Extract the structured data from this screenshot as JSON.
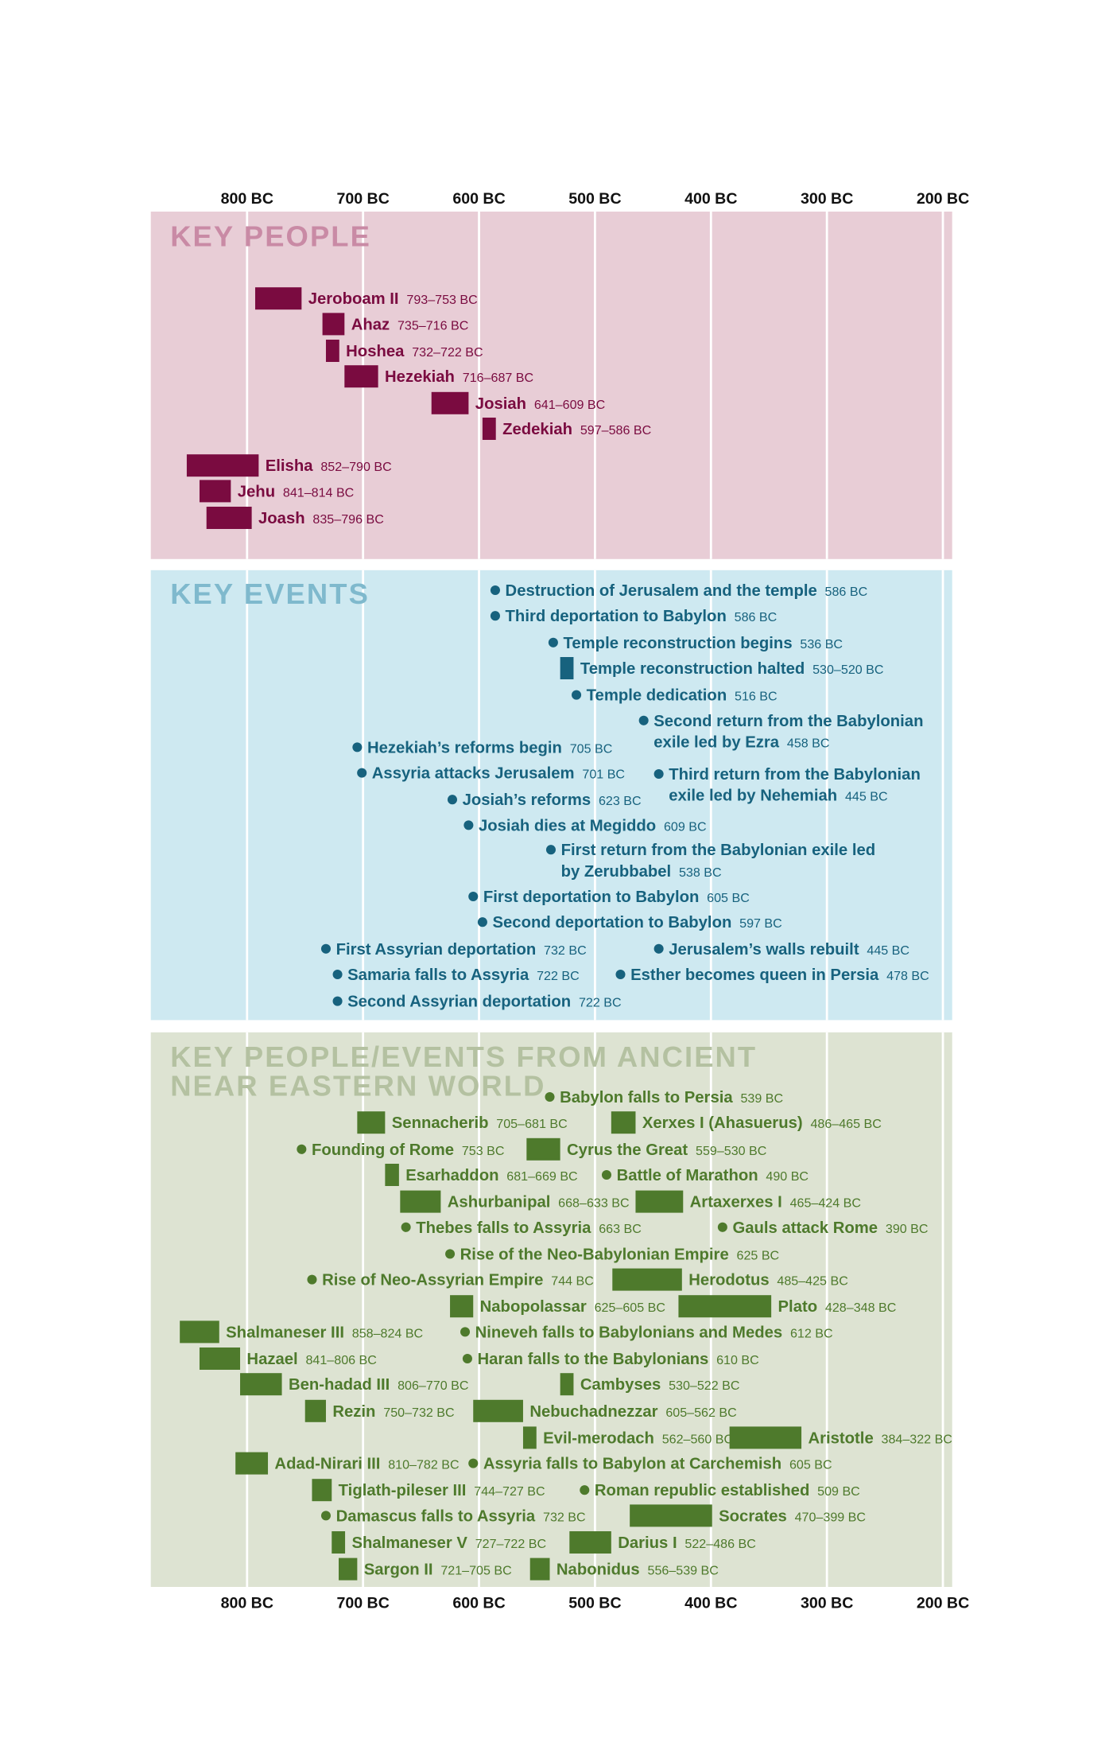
{
  "chart_data": {
    "type": "timeline",
    "xlim": [
      883,
      192
    ],
    "xticks": [
      {
        "value": 800,
        "label": "800 BC"
      },
      {
        "value": 700,
        "label": "700 BC"
      },
      {
        "value": 600,
        "label": "600 BC"
      },
      {
        "value": 500,
        "label": "500 BC"
      },
      {
        "value": 400,
        "label": "400 BC"
      },
      {
        "value": 300,
        "label": "300 BC"
      },
      {
        "value": 200,
        "label": "200 BC"
      }
    ],
    "grid": true,
    "sections": [
      {
        "title": [
          "KEY PEOPLE"
        ],
        "color": "#7a0b40",
        "title_color": "#c98aa5",
        "background": "#e8cdd6",
        "items": [
          {
            "name": "Jeroboam II",
            "values": [
              793,
              753
            ],
            "value_label": "793–753 BC"
          },
          {
            "name": "Ahaz",
            "values": [
              735,
              716
            ],
            "value_label": "735–716 BC"
          },
          {
            "name": "Hoshea",
            "values": [
              732,
              722
            ],
            "value_label": "732–722 BC"
          },
          {
            "name": "Hezekiah",
            "values": [
              716,
              687
            ],
            "value_label": "716–687 BC"
          },
          {
            "name": "Josiah",
            "values": [
              641,
              609
            ],
            "value_label": "641–609 BC"
          },
          {
            "name": "Zedekiah",
            "values": [
              597,
              586
            ],
            "value_label": "597–586 BC"
          },
          {
            "name": "Elisha",
            "values": [
              852,
              790
            ],
            "value_label": "852–790 BC"
          },
          {
            "name": "Jehu",
            "values": [
              841,
              814
            ],
            "value_label": "841–814 BC"
          },
          {
            "name": "Joash",
            "values": [
              835,
              796
            ],
            "value_label": "835–796 BC"
          }
        ]
      },
      {
        "title": [
          "KEY EVENTS"
        ],
        "color": "#17627e",
        "title_color": "#7fb9cd",
        "background": "#cee9f1",
        "items": [
          {
            "name": "Destruction of Jerusalem and the temple",
            "value": 586,
            "value_label": "586 BC"
          },
          {
            "name": "Third deportation to Babylon",
            "value": 586,
            "value_label": "586 BC"
          },
          {
            "name": "Temple reconstruction begins",
            "value": 536,
            "value_label": "536 BC"
          },
          {
            "name": "Temple reconstruction halted",
            "values": [
              530,
              520
            ],
            "value_label": "530–520 BC"
          },
          {
            "name": "Temple dedication",
            "value": 516,
            "value_label": "516 BC"
          },
          {
            "name": [
              "Second return from the Babylonian",
              "exile led by Ezra"
            ],
            "value": 458,
            "value_label": "458 BC"
          },
          {
            "name": "Hezekiah’s reforms begin",
            "value": 705,
            "value_label": "705 BC"
          },
          {
            "name": "Assyria attacks Jerusalem",
            "value": 701,
            "value_label": "701 BC"
          },
          {
            "name": [
              "Third return from the Babylonian",
              "exile led by Nehemiah"
            ],
            "value": 445,
            "value_label": "445 BC"
          },
          {
            "name": "Josiah’s reforms",
            "value": 623,
            "value_label": "623 BC"
          },
          {
            "name": "Josiah dies at Megiddo",
            "value": 609,
            "value_label": "609 BC"
          },
          {
            "name": [
              "First return from the Babylonian exile led",
              "by Zerubbabel"
            ],
            "value": 538,
            "value_label": "538 BC"
          },
          {
            "name": "First deportation to Babylon",
            "value": 605,
            "value_label": "605 BC"
          },
          {
            "name": "Second deportation to Babylon",
            "value": 597,
            "value_label": "597 BC"
          },
          {
            "name": "First Assyrian deportation",
            "value": 732,
            "value_label": "732 BC"
          },
          {
            "name": "Jerusalem’s walls rebuilt",
            "value": 445,
            "value_label": "445 BC"
          },
          {
            "name": "Samaria falls to Assyria",
            "value": 722,
            "value_label": "722 BC"
          },
          {
            "name": "Esther becomes queen in Persia",
            "value": 478,
            "value_label": "478 BC"
          },
          {
            "name": "Second Assyrian deportation",
            "value": 722,
            "value_label": "722 BC"
          }
        ]
      },
      {
        "title": [
          "KEY PEOPLE/EVENTS FROM ANCIENT",
          "NEAR EASTERN WORLD"
        ],
        "color": "#4e7a2c",
        "title_color": "#b4c1a1",
        "background": "#dde3d2",
        "items": [
          {
            "name": "Babylon falls to Persia",
            "value": 539,
            "value_label": "539 BC"
          },
          {
            "name": "Sennacherib",
            "values": [
              705,
              681
            ],
            "value_label": "705–681 BC"
          },
          {
            "name": "Xerxes I (Ahasuerus)",
            "values": [
              486,
              465
            ],
            "value_label": "486–465 BC"
          },
          {
            "name": "Founding of Rome",
            "value": 753,
            "value_label": "753 BC"
          },
          {
            "name": "Cyrus the Great",
            "values": [
              559,
              530
            ],
            "value_label": "559–530 BC"
          },
          {
            "name": "Esarhaddon",
            "values": [
              681,
              669
            ],
            "value_label": "681–669 BC"
          },
          {
            "name": "Battle of Marathon",
            "value": 490,
            "value_label": "490 BC"
          },
          {
            "name": "Ashurbanipal",
            "values": [
              668,
              633
            ],
            "value_label": "668–633 BC"
          },
          {
            "name": "Artaxerxes I",
            "values": [
              465,
              424
            ],
            "value_label": "465–424 BC"
          },
          {
            "name": "Thebes falls to Assyria",
            "value": 663,
            "value_label": "663 BC"
          },
          {
            "name": "Gauls attack Rome",
            "value": 390,
            "value_label": "390 BC"
          },
          {
            "name": "Rise of the Neo-Babylonian Empire",
            "value": 625,
            "value_label": "625 BC"
          },
          {
            "name": "Rise of Neo-Assyrian Empire",
            "value": 744,
            "value_label": "744 BC"
          },
          {
            "name": "Herodotus",
            "values": [
              485,
              425
            ],
            "value_label": "485–425 BC"
          },
          {
            "name": "Nabopolassar",
            "values": [
              625,
              605
            ],
            "value_label": "625–605 BC"
          },
          {
            "name": "Plato",
            "values": [
              428,
              348
            ],
            "value_label": "428–348 BC"
          },
          {
            "name": "Shalmaneser III",
            "values": [
              858,
              824
            ],
            "value_label": "858–824 BC"
          },
          {
            "name": "Nineveh falls to Babylonians and Medes",
            "value": 612,
            "value_label": "612 BC"
          },
          {
            "name": "Hazael",
            "values": [
              841,
              806
            ],
            "value_label": "841–806 BC"
          },
          {
            "name": "Haran falls to the Babylonians",
            "value": 610,
            "value_label": "610 BC"
          },
          {
            "name": "Ben-hadad III",
            "values": [
              806,
              770
            ],
            "value_label": "806–770 BC"
          },
          {
            "name": "Cambyses",
            "values": [
              530,
              522
            ],
            "value_label": "530–522 BC"
          },
          {
            "name": "Rezin",
            "values": [
              750,
              732
            ],
            "value_label": "750–732 BC"
          },
          {
            "name": "Nebuchadnezzar",
            "values": [
              605,
              562
            ],
            "value_label": "605–562 BC"
          },
          {
            "name": "Evil-merodach",
            "values": [
              562,
              560
            ],
            "value_label": "562–560 BC"
          },
          {
            "name": "Aristotle",
            "values": [
              384,
              322
            ],
            "value_label": "384–322 BC"
          },
          {
            "name": "Adad-Nirari III",
            "values": [
              810,
              782
            ],
            "value_label": "810–782 BC"
          },
          {
            "name": "Assyria falls to Babylon at Carchemish",
            "value": 605,
            "value_label": "605 BC"
          },
          {
            "name": "Tiglath-pileser III",
            "values": [
              744,
              727
            ],
            "value_label": "744–727 BC"
          },
          {
            "name": "Roman republic established",
            "value": 509,
            "value_label": "509 BC"
          },
          {
            "name": "Damascus falls to Assyria",
            "value": 732,
            "value_label": "732 BC"
          },
          {
            "name": "Socrates",
            "values": [
              470,
              399
            ],
            "value_label": "470–399 BC"
          },
          {
            "name": "Shalmaneser V",
            "values": [
              727,
              722
            ],
            "value_label": "727–722 BC"
          },
          {
            "name": "Darius I",
            "values": [
              522,
              486
            ],
            "value_label": "522–486 BC"
          },
          {
            "name": "Sargon II",
            "values": [
              721,
              705
            ],
            "value_label": "721–705 BC"
          },
          {
            "name": "Nabonidus",
            "values": [
              556,
              539
            ],
            "value_label": "556–539 BC"
          }
        ]
      }
    ]
  }
}
